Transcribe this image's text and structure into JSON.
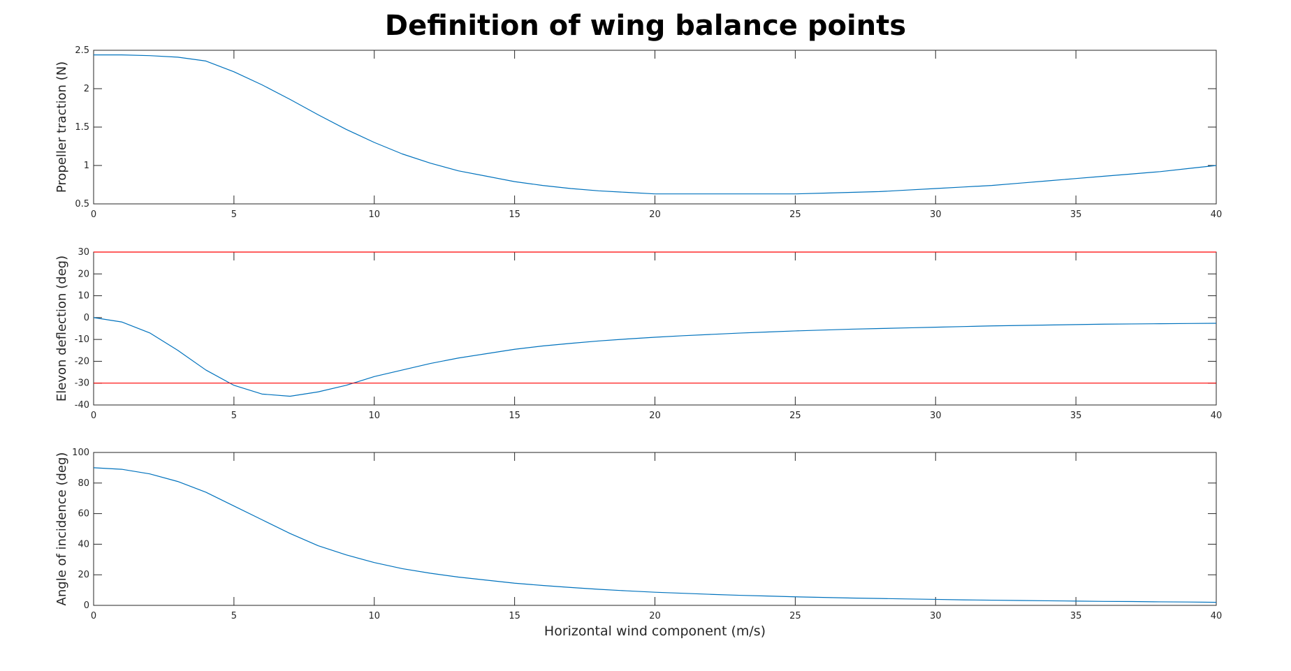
{
  "figure": {
    "title": "Definition of wing balance points"
  },
  "chart_data": [
    {
      "type": "line",
      "ylabel": "Propeller traction (N)",
      "xlabel": "",
      "xlim": [
        0,
        40
      ],
      "ylim": [
        0.5,
        2.5
      ],
      "xticks": [
        0,
        5,
        10,
        15,
        20,
        25,
        30,
        35,
        40
      ],
      "yticks": [
        0.5,
        1,
        1.5,
        2,
        2.5
      ],
      "grid": false,
      "series": [
        {
          "color": "#0072bd",
          "x": [
            0,
            1,
            2,
            3,
            4,
            5,
            6,
            7,
            8,
            9,
            10,
            11,
            12,
            13,
            14,
            15,
            16,
            17,
            18,
            19,
            20,
            21,
            22,
            23,
            24,
            25,
            26,
            27,
            28,
            29,
            30,
            31,
            32,
            33,
            34,
            35,
            36,
            37,
            38,
            39,
            40
          ],
          "values": [
            2.44,
            2.44,
            2.43,
            2.41,
            2.36,
            2.22,
            2.05,
            1.86,
            1.66,
            1.47,
            1.3,
            1.15,
            1.03,
            0.93,
            0.86,
            0.79,
            0.74,
            0.7,
            0.67,
            0.65,
            0.63,
            0.63,
            0.63,
            0.63,
            0.63,
            0.63,
            0.64,
            0.65,
            0.66,
            0.68,
            0.7,
            0.72,
            0.74,
            0.77,
            0.8,
            0.83,
            0.86,
            0.89,
            0.92,
            0.96,
            1.0
          ]
        }
      ]
    },
    {
      "type": "line",
      "ylabel": "Elevon deflection (deg)",
      "xlabel": "",
      "xlim": [
        0,
        40
      ],
      "ylim": [
        -40,
        30
      ],
      "xticks": [
        0,
        5,
        10,
        15,
        20,
        25,
        30,
        35,
        40
      ],
      "yticks": [
        -40,
        -30,
        -20,
        -10,
        0,
        10,
        20,
        30
      ],
      "grid": false,
      "series": [
        {
          "color": "#0072bd",
          "x": [
            0,
            1,
            2,
            3,
            4,
            5,
            6,
            7,
            8,
            9,
            10,
            11,
            12,
            13,
            14,
            15,
            16,
            17,
            18,
            19,
            20,
            21,
            22,
            23,
            24,
            25,
            26,
            27,
            28,
            29,
            30,
            31,
            32,
            33,
            34,
            35,
            36,
            37,
            38,
            39,
            40
          ],
          "values": [
            0,
            -2,
            -7,
            -15,
            -24,
            -31,
            -35,
            -36,
            -34,
            -31,
            -27,
            -24,
            -21,
            -18.5,
            -16.5,
            -14.5,
            -13,
            -11.8,
            -10.7,
            -9.8,
            -9,
            -8.3,
            -7.7,
            -7.1,
            -6.6,
            -6.1,
            -5.7,
            -5.3,
            -5,
            -4.7,
            -4.4,
            -4.1,
            -3.8,
            -3.6,
            -3.4,
            -3.2,
            -3,
            -2.9,
            -2.8,
            -2.7,
            -2.6
          ]
        },
        {
          "color": "#ff0000",
          "x": [
            0,
            40
          ],
          "values": [
            30,
            30
          ]
        },
        {
          "color": "#ff0000",
          "x": [
            0,
            40
          ],
          "values": [
            -30,
            -30
          ]
        }
      ]
    },
    {
      "type": "line",
      "ylabel": "Angle of incidence (deg)",
      "xlabel": "Horizontal wind component (m/s)",
      "xlim": [
        0,
        40
      ],
      "ylim": [
        0,
        100
      ],
      "xticks": [
        0,
        5,
        10,
        15,
        20,
        25,
        30,
        35,
        40
      ],
      "yticks": [
        0,
        20,
        40,
        60,
        80,
        100
      ],
      "grid": false,
      "series": [
        {
          "color": "#0072bd",
          "x": [
            0,
            1,
            2,
            3,
            4,
            5,
            6,
            7,
            8,
            9,
            10,
            11,
            12,
            13,
            14,
            15,
            16,
            17,
            18,
            19,
            20,
            21,
            22,
            23,
            24,
            25,
            26,
            27,
            28,
            29,
            30,
            31,
            32,
            33,
            34,
            35,
            36,
            37,
            38,
            39,
            40
          ],
          "values": [
            90,
            89,
            86,
            81,
            74,
            65,
            56,
            47,
            39,
            33,
            28,
            24,
            21,
            18.5,
            16.5,
            14.5,
            13,
            11.7,
            10.5,
            9.5,
            8.6,
            7.9,
            7.2,
            6.6,
            6.1,
            5.6,
            5.2,
            4.8,
            4.5,
            4.2,
            3.9,
            3.6,
            3.4,
            3.2,
            3.0,
            2.8,
            2.6,
            2.5,
            2.3,
            2.2,
            2.0
          ]
        }
      ]
    }
  ]
}
